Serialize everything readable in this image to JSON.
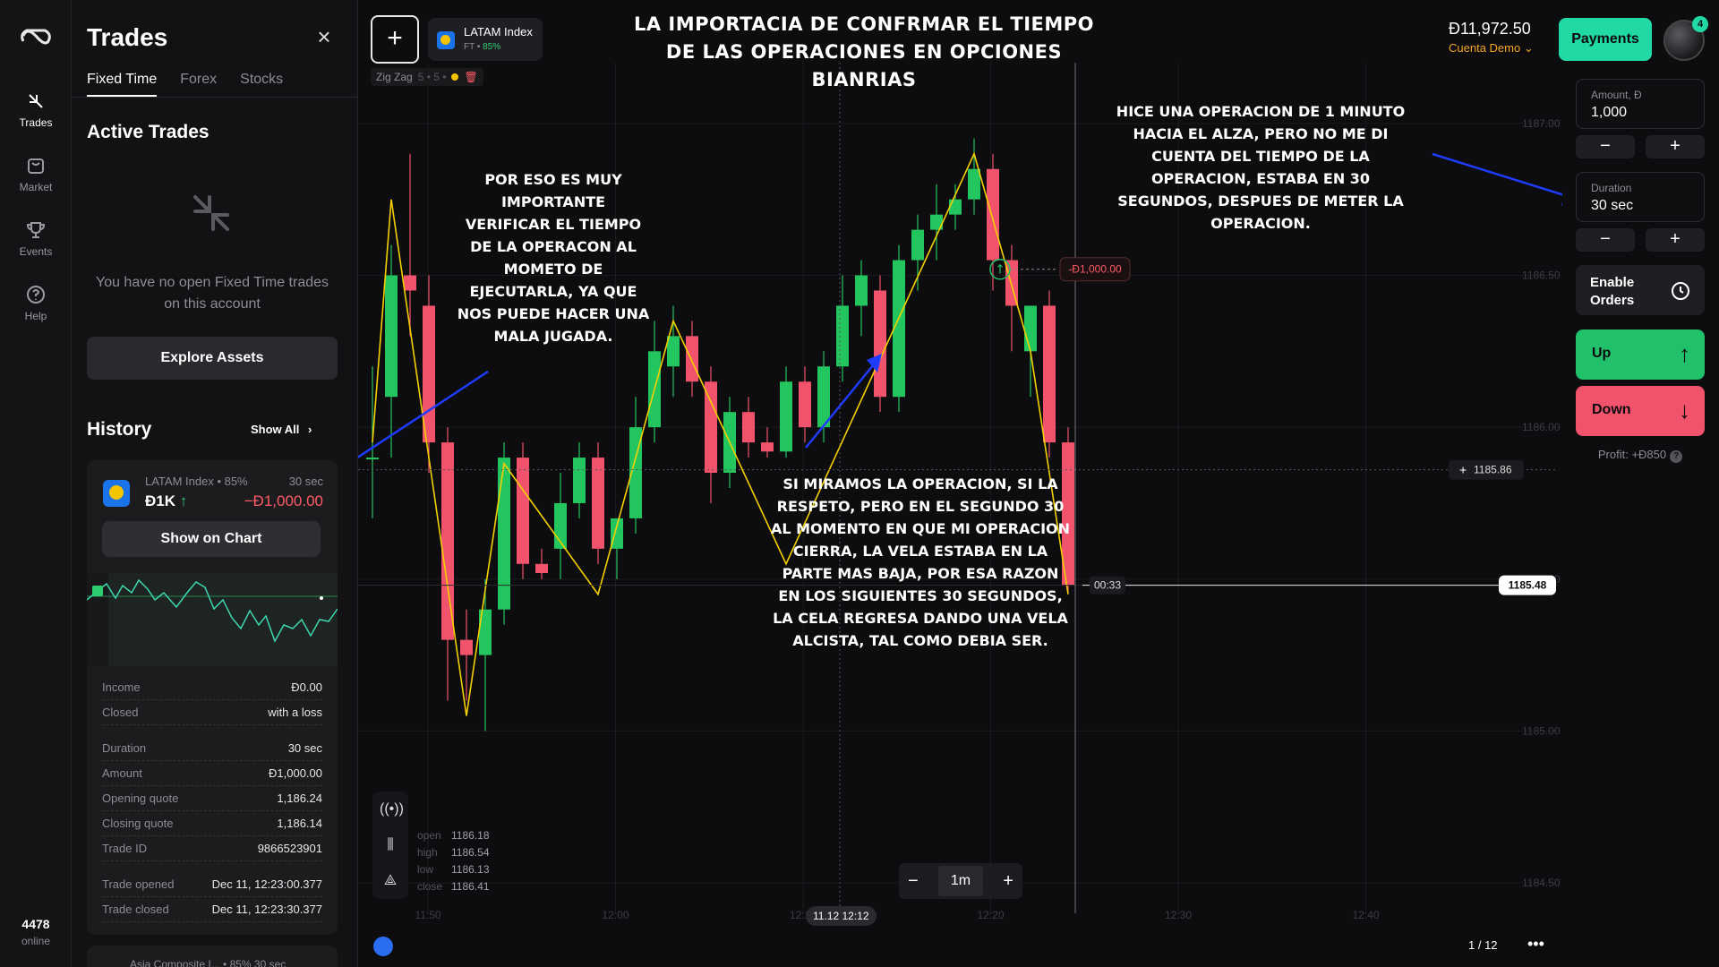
{
  "nav": {
    "items": [
      {
        "label": "Trades",
        "icon": "trades-icon"
      },
      {
        "label": "Market",
        "icon": "market-icon"
      },
      {
        "label": "Events",
        "icon": "trophy-icon"
      },
      {
        "label": "Help",
        "icon": "help-icon"
      }
    ],
    "online_count": "4478",
    "online_label": "online"
  },
  "panel": {
    "title": "Trades",
    "tabs": [
      "Fixed Time",
      "Forex",
      "Stocks"
    ],
    "active_heading": "Active Trades",
    "empty_text": "You have no open Fixed Time trades on this account",
    "explore_label": "Explore Assets",
    "history_heading": "History",
    "show_all": "Show All",
    "trade": {
      "asset": "LATAM Index • 85%",
      "duration": "30 sec",
      "amount": "Đ1K",
      "pl": "−Đ1,000.00",
      "show_on_chart": "Show on Chart",
      "details": [
        {
          "k": "Income",
          "v": "Đ0.00"
        },
        {
          "k": "Closed",
          "v": "with a loss"
        },
        {
          "k": "Duration",
          "v": "30 sec"
        },
        {
          "k": "Amount",
          "v": "Đ1,000.00"
        },
        {
          "k": "Opening quote",
          "v": "1,186.24"
        },
        {
          "k": "Closing quote",
          "v": "1,186.14"
        },
        {
          "k": "Trade ID",
          "v": "9866523901"
        },
        {
          "k": "Trade opened",
          "v": "Dec 11, 12:23:00.377"
        },
        {
          "k": "Trade closed",
          "v": "Dec 11, 12:23:30.377"
        }
      ]
    },
    "next_card": "Asia Composite I... • 85%   30 sec"
  },
  "topbar": {
    "asset_name": "LATAM Index",
    "asset_sub": "FT",
    "asset_pct": "85%",
    "indicator_name": "Zig Zag",
    "indicator_params": "5 • 5 •",
    "balance": "Đ11,972.50",
    "account": "Cuenta Demo",
    "payments": "Payments",
    "notif_count": "4"
  },
  "annotations": {
    "title": "LA IMPORTACIA DE CONFRMAR EL TIEMPO DE LAS OPERACIONES EN OPCIONES BIANRIAS",
    "left_note": "POR ESO ES MUY IMPORTANTE VERIFICAR EL TIEMPO DE LA OPERACON AL MOMETO DE EJECUTARLA, YA QUE NOS PUEDE HACER UNA MALA JUGADA.",
    "right_note": "HICE UNA OPERACION DE 1 MINUTO HACIA EL ALZA, PERO NO ME DI CUENTA DEL TIEMPO DE LA OPERACION, ESTABA EN 30 SEGUNDOS, DESPUES DE METER LA OPERACION.",
    "bottom_note": "SI MIRAMOS LA OPERACION, SI LA RESPETO, PERO EN EL SEGUNDO 30 AL MOMENTO EN QUE MI OPERACION CIERRA, LA VELA ESTABA EN LA PARTE MAS BAJA, POR ESA RAZON EN LOS SIGUIENTES 30 SEGUNDOS, LA CELA REGRESA DANDO UNA VELA ALCISTA, TAL COMO DEBIA SER."
  },
  "controls": {
    "amount_label": "Amount, Đ",
    "amount_value": "1,000",
    "duration_label": "Duration",
    "duration_value": "30 sec",
    "enable_orders": "Enable Orders",
    "up": "Up",
    "down": "Down",
    "profit": "Profit: +Đ850"
  },
  "chart": {
    "trade_label": "-Đ1,000.00",
    "cross_price": "1185.86",
    "current_price": "1185.48",
    "countdown": "00:33",
    "y_ticks": [
      "1187.00",
      "1186.50",
      "1186.00",
      "1185.50",
      "1185.00",
      "1184.50"
    ],
    "x_ticks": [
      "11:50",
      "12:00",
      "12:10",
      "12:20",
      "12:30",
      "12:40"
    ],
    "crosshair_time": "11.12 12:12",
    "timeframe": "1m",
    "ohlc": {
      "open": "1186.18",
      "high": "1186.54",
      "low": "1186.13",
      "close": "1186.41"
    },
    "pager": "1 / 12",
    "colors": {
      "up": "#22c55e",
      "down": "#f0536b",
      "zigzag": "#f5d000",
      "arrow": "#1f3bff"
    }
  },
  "chart_data": {
    "type": "candlestick",
    "xlabel": "",
    "ylabel": "",
    "ylim": [
      1184.4,
      1187.2
    ],
    "candles": [
      {
        "t": "11:48",
        "o": 1185.9,
        "h": 1186.2,
        "l": 1185.7,
        "c": 1185.9
      },
      {
        "t": "11:49",
        "o": 1186.1,
        "h": 1186.6,
        "l": 1185.9,
        "c": 1186.5
      },
      {
        "t": "11:50",
        "o": 1186.5,
        "h": 1186.9,
        "l": 1186.3,
        "c": 1186.45
      },
      {
        "t": "11:51",
        "o": 1186.4,
        "h": 1186.5,
        "l": 1185.85,
        "c": 1185.95
      },
      {
        "t": "11:52",
        "o": 1185.95,
        "h": 1186.0,
        "l": 1185.1,
        "c": 1185.3
      },
      {
        "t": "11:53",
        "o": 1185.3,
        "h": 1185.4,
        "l": 1185.1,
        "c": 1185.25
      },
      {
        "t": "11:54",
        "o": 1185.25,
        "h": 1185.5,
        "l": 1185.0,
        "c": 1185.4
      },
      {
        "t": "11:55",
        "o": 1185.4,
        "h": 1185.95,
        "l": 1185.35,
        "c": 1185.9
      },
      {
        "t": "11:56",
        "o": 1185.9,
        "h": 1185.95,
        "l": 1185.5,
        "c": 1185.55
      },
      {
        "t": "11:57",
        "o": 1185.55,
        "h": 1185.6,
        "l": 1185.5,
        "c": 1185.52
      },
      {
        "t": "11:58",
        "o": 1185.6,
        "h": 1185.85,
        "l": 1185.5,
        "c": 1185.75
      },
      {
        "t": "11:59",
        "o": 1185.75,
        "h": 1185.95,
        "l": 1185.7,
        "c": 1185.9
      },
      {
        "t": "12:00",
        "o": 1185.9,
        "h": 1185.95,
        "l": 1185.55,
        "c": 1185.6
      },
      {
        "t": "12:01",
        "o": 1185.6,
        "h": 1185.7,
        "l": 1185.5,
        "c": 1185.7
      },
      {
        "t": "12:02",
        "o": 1185.7,
        "h": 1186.1,
        "l": 1185.65,
        "c": 1186.0
      },
      {
        "t": "12:03",
        "o": 1186.0,
        "h": 1186.35,
        "l": 1185.95,
        "c": 1186.25
      },
      {
        "t": "12:04",
        "o": 1186.2,
        "h": 1186.4,
        "l": 1186.1,
        "c": 1186.3
      },
      {
        "t": "12:05",
        "o": 1186.3,
        "h": 1186.35,
        "l": 1186.1,
        "c": 1186.15
      },
      {
        "t": "12:06",
        "o": 1186.15,
        "h": 1186.2,
        "l": 1185.75,
        "c": 1185.85
      },
      {
        "t": "12:07",
        "o": 1185.85,
        "h": 1186.1,
        "l": 1185.8,
        "c": 1186.05
      },
      {
        "t": "12:08",
        "o": 1186.05,
        "h": 1186.1,
        "l": 1185.9,
        "c": 1185.95
      },
      {
        "t": "12:09",
        "o": 1185.95,
        "h": 1186.0,
        "l": 1185.9,
        "c": 1185.92
      },
      {
        "t": "12:10",
        "o": 1185.92,
        "h": 1186.2,
        "l": 1185.9,
        "c": 1186.15
      },
      {
        "t": "12:11",
        "o": 1186.15,
        "h": 1186.2,
        "l": 1185.95,
        "c": 1186.0
      },
      {
        "t": "12:12",
        "o": 1186.0,
        "h": 1186.25,
        "l": 1185.95,
        "c": 1186.2
      },
      {
        "t": "12:13",
        "o": 1186.2,
        "h": 1186.5,
        "l": 1186.15,
        "c": 1186.4
      },
      {
        "t": "12:14",
        "o": 1186.4,
        "h": 1186.55,
        "l": 1186.3,
        "c": 1186.5
      },
      {
        "t": "12:15",
        "o": 1186.45,
        "h": 1186.5,
        "l": 1186.05,
        "c": 1186.1
      },
      {
        "t": "12:16",
        "o": 1186.1,
        "h": 1186.6,
        "l": 1186.05,
        "c": 1186.55
      },
      {
        "t": "12:17",
        "o": 1186.55,
        "h": 1186.7,
        "l": 1186.45,
        "c": 1186.65
      },
      {
        "t": "12:18",
        "o": 1186.65,
        "h": 1186.8,
        "l": 1186.55,
        "c": 1186.7
      },
      {
        "t": "12:19",
        "o": 1186.7,
        "h": 1186.8,
        "l": 1186.65,
        "c": 1186.75
      },
      {
        "t": "12:20",
        "o": 1186.75,
        "h": 1186.95,
        "l": 1186.7,
        "c": 1186.85
      },
      {
        "t": "12:21",
        "o": 1186.85,
        "h": 1186.9,
        "l": 1186.45,
        "c": 1186.55
      },
      {
        "t": "12:22",
        "o": 1186.55,
        "h": 1186.6,
        "l": 1186.25,
        "c": 1186.4
      },
      {
        "t": "12:23",
        "o": 1186.25,
        "h": 1186.4,
        "l": 1186.1,
        "c": 1186.4
      },
      {
        "t": "12:24",
        "o": 1186.4,
        "h": 1186.45,
        "l": 1185.9,
        "c": 1185.95
      },
      {
        "t": "12:25",
        "o": 1185.95,
        "h": 1186.0,
        "l": 1185.45,
        "c": 1185.48
      }
    ],
    "zigzag": [
      [
        1185.95,
        0
      ],
      [
        1186.75,
        1
      ],
      [
        1185.05,
        5
      ],
      [
        1185.88,
        7
      ],
      [
        1185.45,
        12
      ],
      [
        1186.35,
        16
      ],
      [
        1185.55,
        22
      ],
      [
        1186.9,
        32
      ],
      [
        1186.25,
        35
      ],
      [
        1185.45,
        37
      ]
    ]
  }
}
